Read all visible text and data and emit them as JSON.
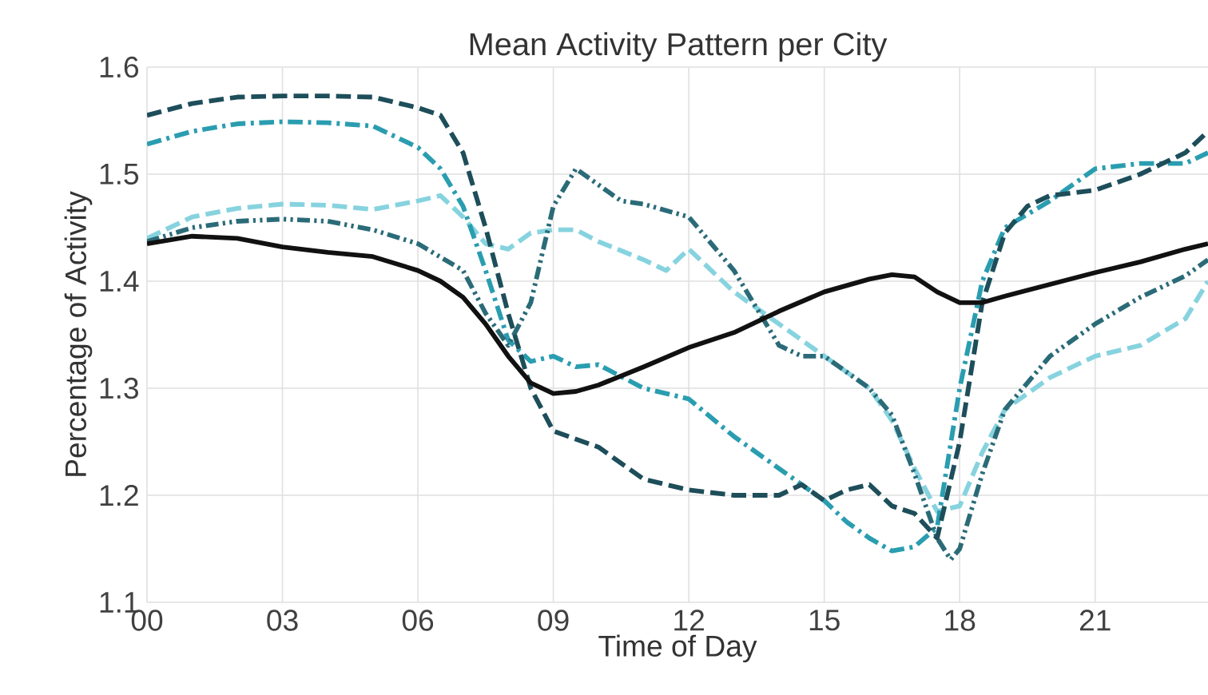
{
  "chart_data": {
    "type": "line",
    "title": "Mean Activity Pattern per City",
    "xlabel": "Time of Day",
    "ylabel": "Percentage of Activity",
    "xlim": [
      0,
      23.5
    ],
    "ylim": [
      1.1,
      1.6
    ],
    "xticks": [
      {
        "value": 0,
        "label": "00"
      },
      {
        "value": 3,
        "label": "03"
      },
      {
        "value": 6,
        "label": "06"
      },
      {
        "value": 9,
        "label": "09"
      },
      {
        "value": 12,
        "label": "12"
      },
      {
        "value": 15,
        "label": "15"
      },
      {
        "value": 18,
        "label": "18"
      },
      {
        "value": 21,
        "label": "21"
      }
    ],
    "yticks": [
      1.1,
      1.2,
      1.3,
      1.4,
      1.5,
      1.6
    ],
    "grid": true,
    "series": [
      {
        "color": "#86d3df",
        "line_style": "dashed",
        "x": [
          0,
          1,
          2,
          3,
          4,
          5,
          6,
          6.5,
          7,
          7.5,
          8,
          8.5,
          9,
          9.5,
          10,
          11,
          11.5,
          12,
          13,
          14,
          15,
          16,
          16.5,
          17,
          17.5,
          18,
          18.5,
          19,
          20,
          21,
          22,
          23,
          23.5
        ],
        "values": [
          1.44,
          1.46,
          1.468,
          1.472,
          1.471,
          1.467,
          1.475,
          1.48,
          1.46,
          1.435,
          1.43,
          1.445,
          1.448,
          1.448,
          1.437,
          1.42,
          1.41,
          1.43,
          1.39,
          1.36,
          1.33,
          1.3,
          1.27,
          1.225,
          1.185,
          1.19,
          1.24,
          1.28,
          1.31,
          1.33,
          1.34,
          1.365,
          1.4
        ]
      },
      {
        "color": "#2a9db0",
        "line_style": "dashdot",
        "x": [
          0,
          1,
          2,
          3,
          4,
          5,
          6,
          6.5,
          7,
          7.5,
          8,
          8.5,
          9,
          9.5,
          10,
          11,
          12,
          13,
          14,
          15,
          15.5,
          16,
          16.5,
          17,
          17.5,
          18,
          18.5,
          19,
          20,
          21,
          22,
          23,
          23.5
        ],
        "values": [
          1.528,
          1.54,
          1.547,
          1.549,
          1.548,
          1.545,
          1.525,
          1.505,
          1.47,
          1.41,
          1.345,
          1.325,
          1.33,
          1.32,
          1.322,
          1.3,
          1.29,
          1.255,
          1.225,
          1.195,
          1.175,
          1.16,
          1.148,
          1.152,
          1.17,
          1.3,
          1.4,
          1.45,
          1.475,
          1.505,
          1.51,
          1.51,
          1.52
        ]
      },
      {
        "color": "#2b6b78",
        "line_style": "dashdotdot",
        "x": [
          0,
          1,
          2,
          3,
          4,
          5,
          6,
          7,
          7.5,
          8,
          8.5,
          9,
          9.5,
          10,
          10.5,
          11,
          12,
          13,
          14,
          14.5,
          15,
          16,
          16.5,
          17,
          17.5,
          17.8,
          18,
          18.5,
          19,
          20,
          21,
          22,
          23,
          23.5
        ],
        "values": [
          1.437,
          1.45,
          1.456,
          1.458,
          1.456,
          1.448,
          1.435,
          1.41,
          1.37,
          1.34,
          1.38,
          1.47,
          1.505,
          1.49,
          1.475,
          1.472,
          1.46,
          1.41,
          1.34,
          1.33,
          1.33,
          1.3,
          1.275,
          1.22,
          1.16,
          1.14,
          1.15,
          1.22,
          1.28,
          1.33,
          1.36,
          1.385,
          1.405,
          1.42
        ]
      },
      {
        "color": "#1d4e5a",
        "line_style": "dashed",
        "x": [
          0,
          1,
          2,
          3,
          4,
          5,
          6,
          6.5,
          7,
          7.5,
          8,
          8.5,
          9,
          10,
          11,
          12,
          13,
          14,
          14.5,
          15,
          15.5,
          16,
          16.5,
          17,
          17.5,
          18,
          18.5,
          19,
          19.5,
          20,
          21,
          22,
          23,
          23.5
        ],
        "values": [
          1.555,
          1.566,
          1.572,
          1.573,
          1.573,
          1.572,
          1.562,
          1.555,
          1.52,
          1.45,
          1.37,
          1.3,
          1.26,
          1.245,
          1.215,
          1.205,
          1.2,
          1.2,
          1.21,
          1.195,
          1.205,
          1.21,
          1.19,
          1.183,
          1.16,
          1.25,
          1.38,
          1.445,
          1.47,
          1.48,
          1.485,
          1.5,
          1.52,
          1.54
        ]
      },
      {
        "color": "#111111",
        "line_style": "solid",
        "x": [
          0,
          1,
          2,
          3,
          4,
          5,
          6,
          6.5,
          7,
          7.5,
          8,
          8.5,
          9,
          9.5,
          10,
          11,
          12,
          13,
          14,
          15,
          16,
          16.5,
          17,
          17.5,
          18,
          18.5,
          19,
          20,
          21,
          22,
          23,
          23.5
        ],
        "values": [
          1.435,
          1.442,
          1.44,
          1.432,
          1.427,
          1.423,
          1.41,
          1.4,
          1.385,
          1.36,
          1.33,
          1.305,
          1.295,
          1.297,
          1.303,
          1.32,
          1.338,
          1.352,
          1.372,
          1.39,
          1.402,
          1.406,
          1.404,
          1.39,
          1.38,
          1.38,
          1.386,
          1.397,
          1.408,
          1.418,
          1.43,
          1.435
        ]
      }
    ]
  }
}
